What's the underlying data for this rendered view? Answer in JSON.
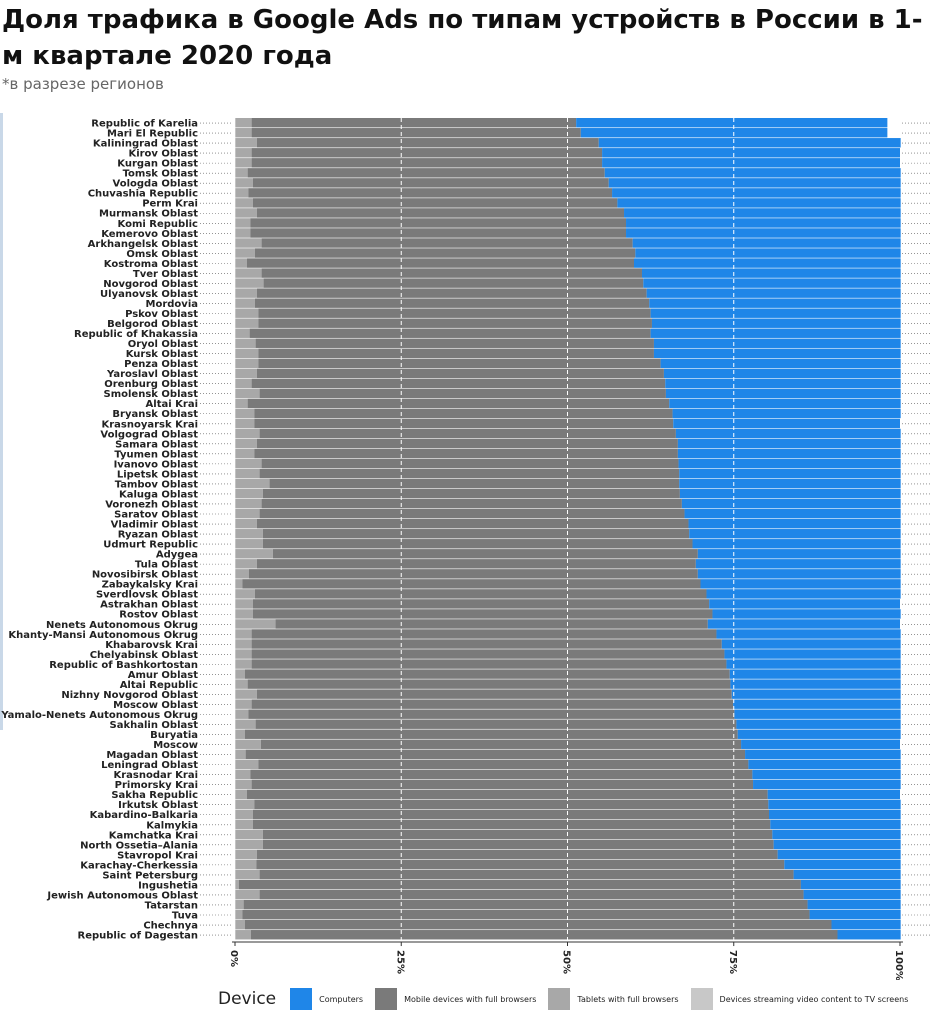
{
  "header": {
    "title": "Доля трафика в Google Ads по типам устройств в России в 1-м квартале 2020 года",
    "subtitle": "*в разрезе регионов"
  },
  "chart_data": {
    "type": "bar",
    "orientation": "horizontal",
    "stacked": true,
    "normalized": true,
    "categories": [
      "Republic of Karelia",
      "Mari El Republic",
      "Kaliningrad Oblast",
      "Kirov Oblast",
      "Kurgan Oblast",
      "Tomsk Oblast",
      "Vologda Oblast",
      "Chuvashia Republic",
      "Perm Krai",
      "Murmansk Oblast",
      "Komi Republic",
      "Kemerovo Oblast",
      "Arkhangelsk Oblast",
      "Omsk Oblast",
      "Kostroma Oblast",
      "Tver Oblast",
      "Novgorod Oblast",
      "Ulyanovsk Oblast",
      "Mordovia",
      "Pskov Oblast",
      "Belgorod Oblast",
      "Republic of Khakassia",
      "Oryol Oblast",
      "Kursk Oblast",
      "Penza Oblast",
      "Yaroslavl Oblast",
      "Orenburg Oblast",
      "Smolensk Oblast",
      "Altai Krai",
      "Bryansk Oblast",
      "Krasnoyarsk Krai",
      "Volgograd Oblast",
      "Samara Oblast",
      "Tyumen Oblast",
      "Ivanovo Oblast",
      "Lipetsk Oblast",
      "Tambov Oblast",
      "Kaluga Oblast",
      "Voronezh Oblast",
      "Saratov Oblast",
      "Vladimir Oblast",
      "Ryazan Oblast",
      "Udmurt Republic",
      "Adygea",
      "Tula Oblast",
      "Novosibirsk Oblast",
      "Zabaykalsky Krai",
      "Sverdlovsk Oblast",
      "Astrakhan Oblast",
      "Rostov Oblast",
      "Nenets Autonomous Okrug",
      "Khanty-Mansi Autonomous Okrug",
      "Khabarovsk Krai",
      "Chelyabinsk Oblast",
      "Republic of Bashkortostan",
      "Amur Oblast",
      "Altai Republic",
      "Nizhny Novgorod Oblast",
      "Moscow Oblast",
      "Yamalo-Nenets Autonomous Okrug",
      "Sakhalin Oblast",
      "Buryatia",
      "Moscow",
      "Magadan Oblast",
      "Leningrad Oblast",
      "Krasnodar Krai",
      "Primorsky Krai",
      "Sakha Republic",
      "Irkutsk Oblast",
      "Kabardino-Balkaria",
      "Kalmykia",
      "Kamchatka Krai",
      "North Ossetia–Alania",
      "Stavropol Krai",
      "Karachay-Cherkessia",
      "Saint Petersburg",
      "Ingushetia",
      "Jewish Autonomous Oblast",
      "Tatarstan",
      "Tuva",
      "Chechnya",
      "Republic of Dagestan"
    ],
    "series": [
      {
        "name": "Devices streaming video content to TV screens",
        "values": [
          0.1,
          0.1,
          0.1,
          0.1,
          0.1,
          0.1,
          0.1,
          0.1,
          0.1,
          0.1,
          0.1,
          0.1,
          0.1,
          0.1,
          0.1,
          0.1,
          0.1,
          0.1,
          0.1,
          0.1,
          0.1,
          0.1,
          0.1,
          0.1,
          0.1,
          0.1,
          0.1,
          0.1,
          0.1,
          0.1,
          0.1,
          0.1,
          0.1,
          0.1,
          0.1,
          0.1,
          0.1,
          0.1,
          0.1,
          0.1,
          0.1,
          0.1,
          0.1,
          0.1,
          0.1,
          0.1,
          0.1,
          0.1,
          0.1,
          0.1,
          0.1,
          0.1,
          0.1,
          0.1,
          0.1,
          0.1,
          0.1,
          0.1,
          0.1,
          0.1,
          0.1,
          0.1,
          0.1,
          0.1,
          0.1,
          0.1,
          0.1,
          0.1,
          0.1,
          0.1,
          0.1,
          0.1,
          0.1,
          0.1,
          0.1,
          0.1,
          0.1,
          0.1,
          0.1,
          0.1,
          0.1,
          0.1
        ]
      },
      {
        "name": "Tablets with full browsers",
        "values": [
          2.4,
          2.4,
          3.2,
          2.4,
          2.4,
          1.8,
          2.6,
          1.9,
          2.6,
          3.2,
          2.2,
          2.2,
          3.9,
          2.9,
          1.7,
          3.9,
          4.2,
          3.2,
          2.9,
          3.4,
          3.4,
          2.1,
          3.0,
          3.4,
          3.4,
          3.2,
          2.4,
          3.6,
          1.8,
          2.8,
          2.8,
          3.6,
          3.2,
          2.8,
          3.9,
          3.6,
          5.1,
          4.1,
          3.9,
          3.6,
          3.2,
          4.1,
          4.1,
          5.6,
          3.2,
          2.0,
          1.0,
          2.9,
          2.6,
          2.6,
          6.0,
          2.4,
          2.4,
          2.4,
          2.4,
          1.4,
          1.8,
          3.2,
          2.4,
          1.9,
          3.0,
          1.4,
          3.8,
          1.5,
          3.4,
          2.2,
          2.4,
          1.7,
          2.8,
          2.6,
          2.6,
          4.1,
          4.1,
          3.2,
          3.1,
          3.6,
          0.5,
          3.6,
          1.2,
          1.0,
          1.4,
          2.3
        ]
      },
      {
        "name": "Mobile devices with full browsers",
        "values": [
          48.8,
          49.5,
          51.4,
          52.7,
          52.7,
          53.7,
          53.5,
          54.7,
          54.8,
          55.2,
          56.5,
          56.5,
          55.8,
          57.2,
          58.2,
          57.2,
          57.1,
          58.6,
          59.3,
          59.0,
          59.2,
          60.3,
          59.9,
          59.5,
          60.5,
          61.2,
          62.2,
          61.1,
          63.4,
          62.9,
          63.0,
          62.6,
          63.3,
          63.7,
          62.7,
          63.1,
          61.6,
          62.7,
          63.2,
          63.9,
          64.9,
          64.1,
          64.6,
          63.9,
          66.0,
          67.5,
          68.9,
          67.9,
          68.6,
          69.1,
          65.0,
          69.9,
          70.7,
          71.1,
          71.4,
          72.9,
          72.6,
          71.4,
          72.4,
          73.1,
          72.3,
          74.1,
          72.2,
          75.1,
          73.7,
          75.5,
          75.4,
          78.3,
          77.3,
          77.6,
          77.8,
          76.6,
          76.8,
          78.3,
          79.4,
          80.3,
          84.5,
          81.8,
          84.8,
          85.3,
          88.2,
          88.2
        ]
      },
      {
        "name": "Computers",
        "values": [
          46.8,
          46.1,
          45.4,
          44.8,
          44.8,
          44.5,
          43.9,
          43.4,
          42.6,
          41.6,
          41.3,
          41.3,
          40.3,
          39.9,
          40.1,
          38.9,
          38.7,
          38.2,
          37.8,
          37.6,
          37.4,
          37.6,
          37.1,
          37.1,
          36.1,
          35.6,
          35.4,
          35.3,
          34.8,
          34.3,
          34.1,
          33.8,
          33.5,
          33.5,
          33.4,
          33.3,
          33.3,
          33.2,
          32.9,
          32.5,
          31.9,
          31.8,
          31.3,
          30.5,
          30.8,
          30.5,
          30.1,
          29.2,
          28.7,
          28.3,
          28.9,
          27.7,
          26.9,
          26.5,
          26.2,
          25.7,
          25.6,
          25.4,
          25.2,
          25.0,
          24.7,
          24.5,
          23.9,
          23.4,
          22.9,
          22.3,
          22.2,
          19.9,
          19.9,
          19.8,
          19.6,
          19.3,
          19.1,
          18.5,
          17.5,
          16.1,
          15.0,
          14.6,
          14.0,
          13.7,
          10.4,
          9.5
        ]
      }
    ],
    "x_axis": {
      "ticks": [
        "0%",
        "25%",
        "50%",
        "75%",
        "100%"
      ],
      "range": [
        0,
        100
      ],
      "unit": "%"
    },
    "legend": {
      "title": "Device",
      "position": "bottom",
      "entries": [
        {
          "label": "Computers",
          "color": "#1f86e8"
        },
        {
          "label": "Mobile devices with full browsers",
          "color": "#7a7a7a"
        },
        {
          "label": "Tablets with full browsers",
          "color": "#a8a8a8"
        },
        {
          "label": "Devices streaming video content to TV screens",
          "color": "#c8c8c8"
        }
      ]
    },
    "colors": {
      "Computers": "#1f86e8",
      "Mobile devices with full browsers": "#7a7a7a",
      "Tablets with full browsers": "#a8a8a8",
      "Devices streaming video content to TV screens": "#c8c8c8"
    },
    "grid": {
      "major_vertical": "dashed white",
      "row_guides": "dotted"
    }
  }
}
